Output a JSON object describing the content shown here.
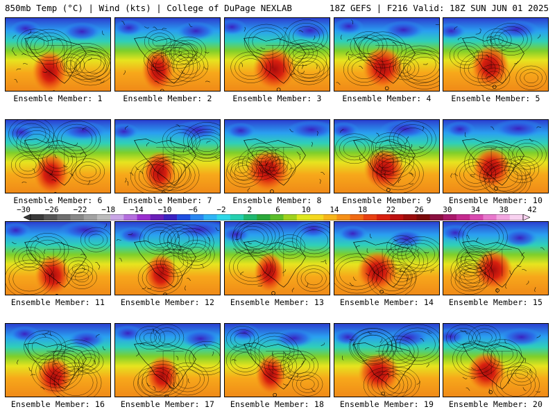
{
  "header": {
    "left": "850mb Temp (°C) | Wind (kts) | College of DuPage NEXLAB",
    "right": "18Z GEFS | F216 Valid: 18Z SUN JUN 01 2025"
  },
  "panels": [
    {
      "label": "Ensemble Member: 1"
    },
    {
      "label": "Ensemble Member: 2"
    },
    {
      "label": "Ensemble Member: 3"
    },
    {
      "label": "Ensemble Member: 4"
    },
    {
      "label": "Ensemble Member: 5"
    },
    {
      "label": "Ensemble Member: 6"
    },
    {
      "label": "Ensemble Member: 7"
    },
    {
      "label": "Ensemble Member: 8"
    },
    {
      "label": "Ensemble Member: 9"
    },
    {
      "label": "Ensemble Member: 10"
    },
    {
      "label": "Ensemble Member: 11"
    },
    {
      "label": "Ensemble Member: 12"
    },
    {
      "label": "Ensemble Member: 13"
    },
    {
      "label": "Ensemble Member: 14"
    },
    {
      "label": "Ensemble Member: 15"
    },
    {
      "label": "Ensemble Member: 16"
    },
    {
      "label": "Ensemble Member: 17"
    },
    {
      "label": "Ensemble Member: 18"
    },
    {
      "label": "Ensemble Member: 19"
    },
    {
      "label": "Ensemble Member: 20"
    }
  ],
  "colorbar": {
    "tick_labels": [
      "−30",
      "−26",
      "−22",
      "−18",
      "−14",
      "−10",
      "−6",
      "−2",
      "2",
      "6",
      "10",
      "14",
      "18",
      "22",
      "26",
      "30",
      "34",
      "38",
      "42"
    ],
    "colors": [
      "#3a3a3a",
      "#555555",
      "#6e6e6e",
      "#888888",
      "#a2a2a2",
      "#bcbcbc",
      "#c9a6e6",
      "#b46ede",
      "#9a2fcf",
      "#6a1fb8",
      "#3a22c0",
      "#1f4fe0",
      "#2a86f0",
      "#2fb4f5",
      "#2fd8e8",
      "#26d0b0",
      "#1fb870",
      "#2aa83a",
      "#5bbd2a",
      "#9fd21f",
      "#dfe81f",
      "#f5d820",
      "#f7b51a",
      "#f59018",
      "#f06a14",
      "#e84012",
      "#d8200f",
      "#bc1010",
      "#9a0c0c",
      "#7a0a0a",
      "#8a1040",
      "#a8186a",
      "#c42a8e",
      "#d84ab0",
      "#e878cc",
      "#f2a6e0",
      "#f8d2f0"
    ],
    "units": "°C"
  }
}
